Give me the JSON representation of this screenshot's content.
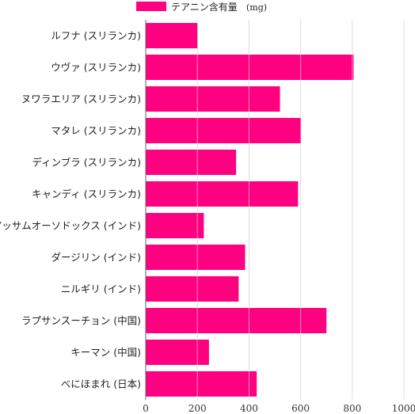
{
  "colors": {
    "bar": "#ff0080",
    "grid": "#dddddd",
    "axis": "#666666",
    "background": "#ffffff"
  },
  "legend": {
    "label": "テアニン含有量",
    "unit": "(mg)"
  },
  "chart_data": {
    "type": "bar",
    "orientation": "horizontal",
    "categories": [
      "ルフナ (スリランカ)",
      "ウヴァ (スリランカ)",
      "ヌワラエリア (スリランカ)",
      "マタレ (スリランカ)",
      "ディンブラ (スリランカ)",
      "キャンディ (スリランカ)",
      "アッサムオーソドックス (インド)",
      "ダージリン (インド)",
      "ニルギリ (インド)",
      "ラプサンスーチョン (中国)",
      "キーマン (中国)",
      "べにほまれ (日本)"
    ],
    "series": [
      {
        "name": "テアニン含有量 (mg)",
        "values": [
          200,
          805,
          520,
          600,
          350,
          590,
          225,
          385,
          360,
          700,
          245,
          430
        ]
      }
    ],
    "xlim": [
      0,
      1000
    ],
    "xticks": [
      0,
      200,
      400,
      600,
      800,
      1000
    ],
    "grid": true,
    "legend_position": "top"
  }
}
